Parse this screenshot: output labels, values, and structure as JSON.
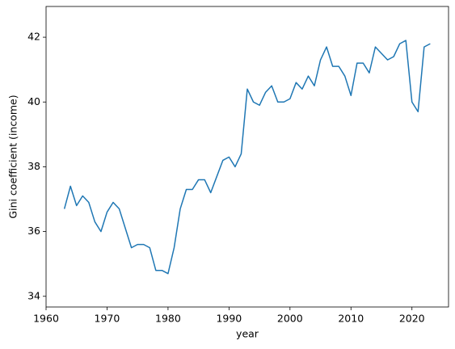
{
  "chart_data": {
    "type": "line",
    "x_label": "year",
    "y_label": "Gini coefficient (income)",
    "x": [
      1963,
      1964,
      1965,
      1966,
      1967,
      1968,
      1969,
      1970,
      1971,
      1972,
      1973,
      1974,
      1975,
      1976,
      1977,
      1978,
      1979,
      1980,
      1981,
      1982,
      1983,
      1984,
      1985,
      1986,
      1987,
      1988,
      1989,
      1990,
      1991,
      1992,
      1993,
      1994,
      1995,
      1996,
      1997,
      1998,
      1999,
      2000,
      2001,
      2002,
      2003,
      2004,
      2005,
      2006,
      2007,
      2008,
      2009,
      2010,
      2011,
      2012,
      2013,
      2014,
      2015,
      2016,
      2017,
      2018,
      2019,
      2020,
      2021,
      2022,
      2023
    ],
    "values": [
      36.7,
      37.4,
      36.8,
      37.1,
      36.9,
      36.3,
      36.0,
      36.6,
      36.9,
      36.7,
      36.1,
      35.5,
      35.6,
      35.6,
      35.5,
      34.8,
      34.8,
      34.7,
      35.5,
      36.7,
      37.3,
      37.3,
      37.6,
      37.6,
      37.2,
      37.7,
      38.2,
      38.3,
      38.0,
      38.4,
      40.4,
      40.0,
      39.9,
      40.3,
      40.5,
      40.0,
      40.0,
      40.1,
      40.6,
      40.4,
      40.8,
      40.5,
      41.3,
      41.7,
      41.1,
      41.1,
      40.8,
      40.2,
      41.2,
      41.2,
      40.9,
      41.7,
      41.5,
      41.3,
      41.4,
      41.8,
      41.9,
      40.0,
      39.7,
      41.7,
      41.8
    ],
    "color": "#1f77b4",
    "xlim": [
      1960,
      2026
    ],
    "xticks": [
      1960,
      1970,
      1980,
      1990,
      2000,
      2010,
      2020
    ],
    "ylim": [
      33.67,
      42.95
    ],
    "yticks": [
      34,
      36,
      38,
      40,
      42
    ]
  }
}
